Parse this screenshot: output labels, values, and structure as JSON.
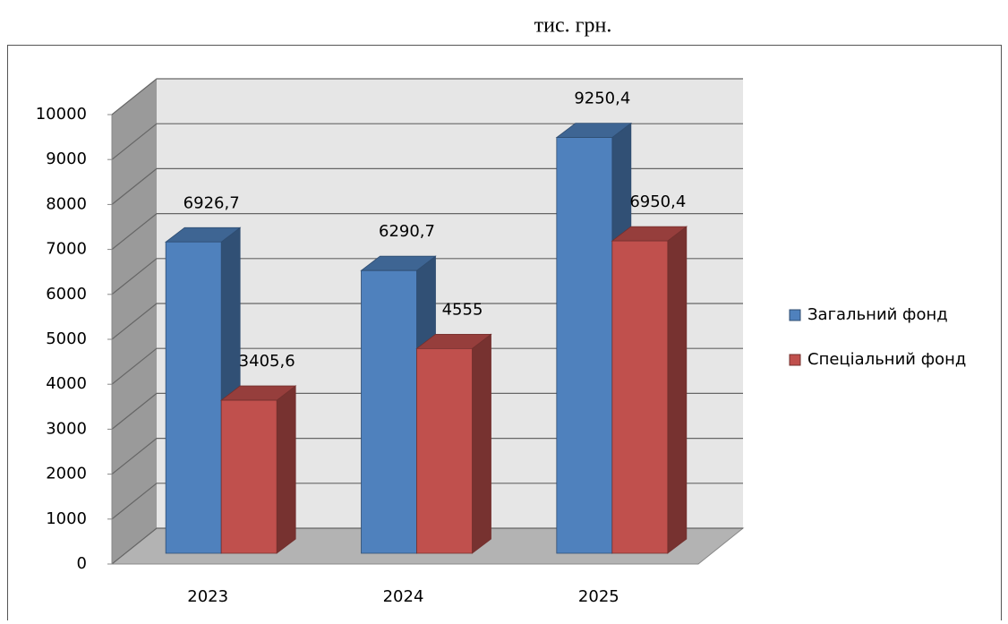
{
  "chart_data": {
    "type": "bar3d",
    "subtitle": "тис. грн.",
    "categories": [
      "2023",
      "2024",
      "2025"
    ],
    "series": [
      {
        "name": "Загальний фонд",
        "color": "#4f81bd",
        "values": [
          6926.7,
          6290.7,
          9250.4
        ],
        "value_labels": [
          "6926,7",
          "6290,7",
          "9250,4"
        ]
      },
      {
        "name": "Спеціальний фонд",
        "color": "#c0504d",
        "values": [
          3405.6,
          4555,
          6950.4
        ],
        "value_labels": [
          "3405,6",
          "4555",
          "6950,4"
        ]
      }
    ],
    "ylim": [
      0,
      10000
    ],
    "yticks": [
      0,
      1000,
      2000,
      3000,
      4000,
      5000,
      6000,
      7000,
      8000,
      9000,
      10000
    ],
    "grid": true,
    "legend": "right"
  }
}
